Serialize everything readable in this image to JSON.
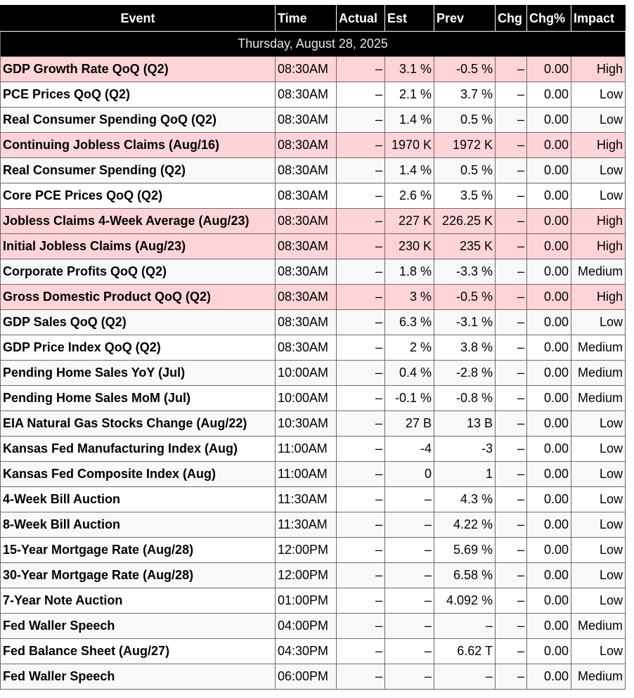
{
  "table": {
    "headers": {
      "event": "Event",
      "time": "Time",
      "actual": "Actual",
      "est": "Est",
      "prev": "Prev",
      "chg": "Chg",
      "chg_pct": "Chg%",
      "impact": "Impact"
    },
    "date": "Thursday, August 28, 2025",
    "rows": [
      {
        "event": "GDP Growth Rate QoQ (Q2)",
        "time": "08:30AM",
        "actual": "–",
        "est": "3.1 %",
        "prev": "-0.5 %",
        "chg": "–",
        "chg_pct": "0.00",
        "impact": "High"
      },
      {
        "event": "PCE Prices QoQ (Q2)",
        "time": "08:30AM",
        "actual": "–",
        "est": "2.1 %",
        "prev": "3.7 %",
        "chg": "–",
        "chg_pct": "0.00",
        "impact": "Low"
      },
      {
        "event": "Real Consumer Spending QoQ (Q2)",
        "time": "08:30AM",
        "actual": "–",
        "est": "1.4 %",
        "prev": "0.5 %",
        "chg": "–",
        "chg_pct": "0.00",
        "impact": "Low"
      },
      {
        "event": "Continuing Jobless Claims (Aug/16)",
        "time": "08:30AM",
        "actual": "–",
        "est": "1970 K",
        "prev": "1972 K",
        "chg": "–",
        "chg_pct": "0.00",
        "impact": "High"
      },
      {
        "event": "Real Consumer Spending (Q2)",
        "time": "08:30AM",
        "actual": "–",
        "est": "1.4 %",
        "prev": "0.5 %",
        "chg": "–",
        "chg_pct": "0.00",
        "impact": "Low"
      },
      {
        "event": "Core PCE Prices QoQ (Q2)",
        "time": "08:30AM",
        "actual": "–",
        "est": "2.6 %",
        "prev": "3.5 %",
        "chg": "–",
        "chg_pct": "0.00",
        "impact": "Low"
      },
      {
        "event": "Jobless Claims 4-Week Average (Aug/23)",
        "time": "08:30AM",
        "actual": "–",
        "est": "227 K",
        "prev": "226.25 K",
        "chg": "–",
        "chg_pct": "0.00",
        "impact": "High"
      },
      {
        "event": "Initial Jobless Claims (Aug/23)",
        "time": "08:30AM",
        "actual": "–",
        "est": "230 K",
        "prev": "235 K",
        "chg": "–",
        "chg_pct": "0.00",
        "impact": "High"
      },
      {
        "event": "Corporate Profits QoQ (Q2)",
        "time": "08:30AM",
        "actual": "–",
        "est": "1.8 %",
        "prev": "-3.3 %",
        "chg": "–",
        "chg_pct": "0.00",
        "impact": "Medium"
      },
      {
        "event": "Gross Domestic Product QoQ (Q2)",
        "time": "08:30AM",
        "actual": "–",
        "est": "3 %",
        "prev": "-0.5 %",
        "chg": "–",
        "chg_pct": "0.00",
        "impact": "High"
      },
      {
        "event": "GDP Sales QoQ (Q2)",
        "time": "08:30AM",
        "actual": "–",
        "est": "6.3 %",
        "prev": "-3.1 %",
        "chg": "–",
        "chg_pct": "0.00",
        "impact": "Low"
      },
      {
        "event": "GDP Price Index QoQ (Q2)",
        "time": "08:30AM",
        "actual": "–",
        "est": "2 %",
        "prev": "3.8 %",
        "chg": "–",
        "chg_pct": "0.00",
        "impact": "Medium"
      },
      {
        "event": "Pending Home Sales YoY (Jul)",
        "time": "10:00AM",
        "actual": "–",
        "est": "0.4 %",
        "prev": "-2.8 %",
        "chg": "–",
        "chg_pct": "0.00",
        "impact": "Medium"
      },
      {
        "event": "Pending Home Sales MoM (Jul)",
        "time": "10:00AM",
        "actual": "–",
        "est": "-0.1 %",
        "prev": "-0.8 %",
        "chg": "–",
        "chg_pct": "0.00",
        "impact": "Medium"
      },
      {
        "event": "EIA Natural Gas Stocks Change (Aug/22)",
        "time": "10:30AM",
        "actual": "–",
        "est": "27 B",
        "prev": "13 B",
        "chg": "–",
        "chg_pct": "0.00",
        "impact": "Low"
      },
      {
        "event": "Kansas Fed Manufacturing Index (Aug)",
        "time": "11:00AM",
        "actual": "–",
        "est": "-4",
        "prev": "-3",
        "chg": "–",
        "chg_pct": "0.00",
        "impact": "Low"
      },
      {
        "event": "Kansas Fed Composite Index (Aug)",
        "time": "11:00AM",
        "actual": "–",
        "est": "0",
        "prev": "1",
        "chg": "–",
        "chg_pct": "0.00",
        "impact": "Low"
      },
      {
        "event": "4-Week Bill Auction",
        "time": "11:30AM",
        "actual": "–",
        "est": "–",
        "prev": "4.3 %",
        "chg": "–",
        "chg_pct": "0.00",
        "impact": "Low"
      },
      {
        "event": "8-Week Bill Auction",
        "time": "11:30AM",
        "actual": "–",
        "est": "–",
        "prev": "4.22 %",
        "chg": "–",
        "chg_pct": "0.00",
        "impact": "Low"
      },
      {
        "event": "15-Year Mortgage Rate (Aug/28)",
        "time": "12:00PM",
        "actual": "–",
        "est": "–",
        "prev": "5.69 %",
        "chg": "–",
        "chg_pct": "0.00",
        "impact": "Low"
      },
      {
        "event": "30-Year Mortgage Rate (Aug/28)",
        "time": "12:00PM",
        "actual": "–",
        "est": "–",
        "prev": "6.58 %",
        "chg": "–",
        "chg_pct": "0.00",
        "impact": "Low"
      },
      {
        "event": "7-Year Note Auction",
        "time": "01:00PM",
        "actual": "–",
        "est": "–",
        "prev": "4.092 %",
        "chg": "–",
        "chg_pct": "0.00",
        "impact": "Low"
      },
      {
        "event": "Fed Waller Speech",
        "time": "04:00PM",
        "actual": "–",
        "est": "–",
        "prev": "–",
        "chg": "–",
        "chg_pct": "0.00",
        "impact": "Medium"
      },
      {
        "event": "Fed Balance Sheet (Aug/27)",
        "time": "04:30PM",
        "actual": "–",
        "est": "–",
        "prev": "6.62 T",
        "chg": "–",
        "chg_pct": "0.00",
        "impact": "Low"
      },
      {
        "event": "Fed Waller Speech",
        "time": "06:00PM",
        "actual": "–",
        "est": "–",
        "prev": "–",
        "chg": "–",
        "chg_pct": "0.00",
        "impact": "Medium"
      }
    ]
  },
  "colors": {
    "header_bg": "#000000",
    "header_text": "#ffffff",
    "high_impact_row": "#ffd4d8",
    "alt_row": "#f8f8f8"
  }
}
